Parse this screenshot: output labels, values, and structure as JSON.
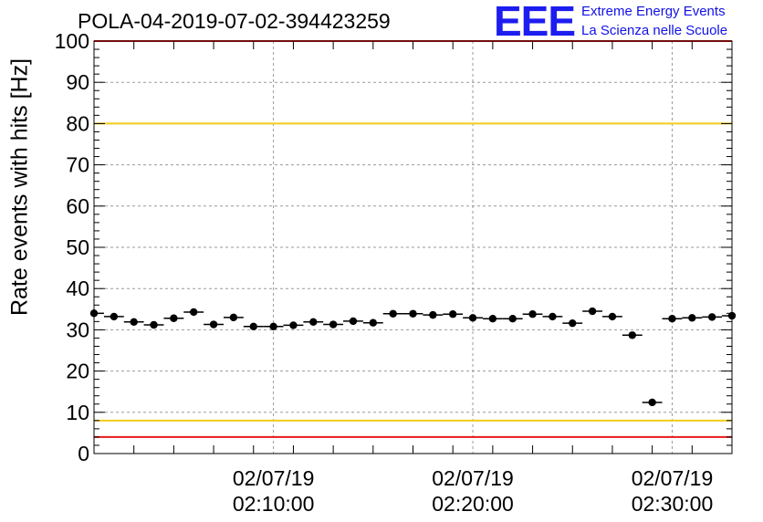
{
  "chart_data": {
    "type": "scatter",
    "title": "POLA-04-2019-07-02-394423259",
    "ylabel": "Rate events with hits [Hz]",
    "xlabel": "",
    "ylim": [
      0,
      100
    ],
    "yticks": [
      0,
      10,
      20,
      30,
      40,
      50,
      60,
      70,
      80,
      90,
      100
    ],
    "xlim": [
      "2019-07-02 02:01:00",
      "2019-07-02 02:33:00"
    ],
    "xtick_labels": [
      {
        "date": "02/07/19",
        "time": "02:10:00"
      },
      {
        "date": "02/07/19",
        "time": "02:20:00"
      },
      {
        "date": "02/07/19",
        "time": "02:30:00"
      }
    ],
    "grid": true,
    "series": [
      {
        "x": [
          "02:01:00",
          "02:02:00",
          "02:03:00",
          "02:04:00",
          "02:05:00",
          "02:06:00",
          "02:07:00",
          "02:08:00",
          "02:09:00",
          "02:10:00",
          "02:11:00",
          "02:12:00",
          "02:13:00",
          "02:14:00",
          "02:15:00",
          "02:16:00",
          "02:17:00",
          "02:18:00",
          "02:19:00",
          "02:20:00",
          "02:21:00",
          "02:22:00",
          "02:23:00",
          "02:24:00",
          "02:25:00",
          "02:26:00",
          "02:27:00",
          "02:28:00",
          "02:29:00",
          "02:30:00",
          "02:31:00",
          "02:32:00",
          "02:33:00"
        ],
        "y": [
          34.0,
          33.2,
          31.9,
          31.2,
          32.8,
          34.3,
          31.3,
          33.0,
          30.8,
          30.8,
          31.1,
          31.9,
          31.3,
          32.1,
          31.7,
          33.9,
          33.9,
          33.6,
          33.8,
          32.9,
          32.7,
          32.7,
          33.8,
          33.2,
          31.6,
          34.5,
          33.2,
          28.7,
          12.4,
          32.7,
          32.9,
          33.1,
          33.4
        ]
      }
    ],
    "reference_lines": [
      {
        "y": 100,
        "color": "#e8191b"
      },
      {
        "y": 80,
        "color": "#f2cc1a"
      },
      {
        "y": 8,
        "color": "#f2cc1a"
      },
      {
        "y": 4,
        "color": "#e8191b"
      }
    ]
  },
  "logo": {
    "text": "EEE",
    "line1": "Extreme Energy Events",
    "line2": "La Scienza nelle Scuole"
  }
}
